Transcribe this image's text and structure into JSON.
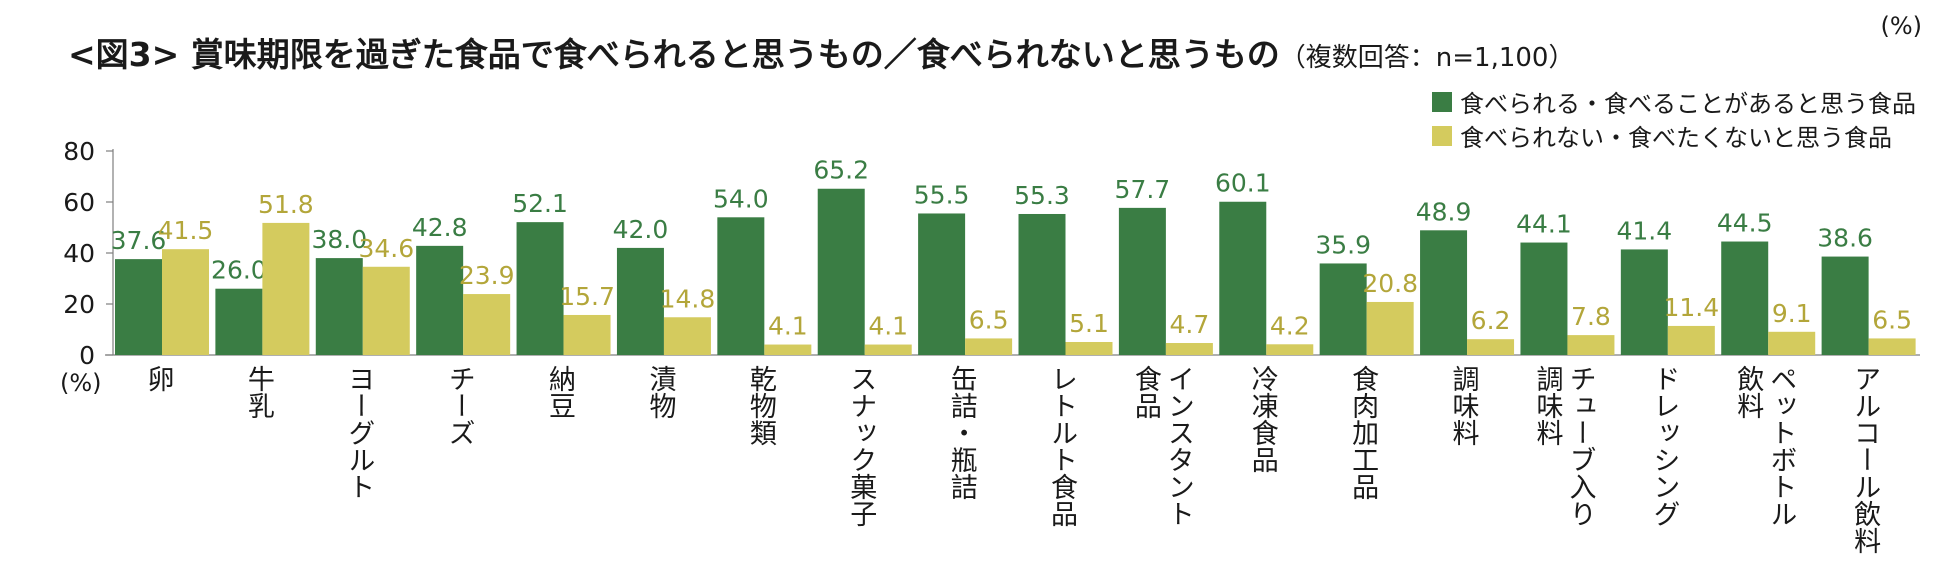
{
  "chart_data": {
    "type": "bar",
    "title": "<図3> 賞味期限を過ぎた食品で食べられると思うもの／食べられないと思うもの",
    "subtitle": "（複数回答：n=1,100）",
    "unit_top": "(%)",
    "ylabel": "(%)",
    "ylim": [
      0,
      80
    ],
    "yticks": [
      "0",
      "20",
      "40",
      "60",
      "80"
    ],
    "categories": [
      "卵",
      "牛乳",
      "ヨーグルト",
      "チーズ",
      "納豆",
      "漬物",
      "乾物類",
      "スナック菓子",
      "缶詰・瓶詰",
      "レトルト食品",
      "インスタント食品",
      "冷凍食品",
      "食肉加工品",
      "調味料",
      "チューブ入り調味料",
      "ドレッシング",
      "ペットボトル飲料",
      "アルコール飲料"
    ],
    "category_lines": [
      [
        "卵"
      ],
      [
        "牛乳"
      ],
      [
        "ヨーグルト"
      ],
      [
        "チーズ"
      ],
      [
        "納豆"
      ],
      [
        "漬物"
      ],
      [
        "乾物類"
      ],
      [
        "スナック菓子"
      ],
      [
        "缶詰・瓶詰"
      ],
      [
        "レトルト食品"
      ],
      [
        "インスタント",
        "食品"
      ],
      [
        "冷凍食品"
      ],
      [
        "食肉加工品"
      ],
      [
        "調味料"
      ],
      [
        "チューブ入り",
        "調味料"
      ],
      [
        "ドレッシング"
      ],
      [
        "ペットボトル",
        "飲料"
      ],
      [
        "アルコール飲料"
      ]
    ],
    "series": [
      {
        "name": "食べられる・食べることがあると思う食品",
        "color": "#3a7d44",
        "label_color": "#3a7d44",
        "values": [
          37.6,
          26.0,
          38.0,
          42.8,
          52.1,
          42.0,
          54.0,
          65.2,
          55.5,
          55.3,
          57.7,
          60.1,
          35.9,
          48.9,
          44.1,
          41.4,
          44.5,
          38.6
        ],
        "labels": [
          "37.6",
          "26.0",
          "38.0",
          "42.8",
          "52.1",
          "42.0",
          "54.0",
          "65.2",
          "55.5",
          "55.3",
          "57.7",
          "60.1",
          "35.9",
          "48.9",
          "44.1",
          "41.4",
          "44.5",
          "38.6"
        ]
      },
      {
        "name": "食べられない・食べたくないと思う食品",
        "color": "#d4cb5e",
        "label_color": "#b3a63a",
        "values": [
          41.5,
          51.8,
          34.6,
          23.9,
          15.7,
          14.8,
          4.1,
          4.1,
          6.5,
          5.1,
          4.7,
          4.2,
          20.8,
          6.2,
          7.8,
          11.4,
          9.1,
          6.5
        ],
        "labels": [
          "41.5",
          "51.8",
          "34.6",
          "23.9",
          "15.7",
          "14.8",
          "4.1",
          "4.1",
          "6.5",
          "5.1",
          "4.7",
          "4.2",
          "20.8",
          "6.2",
          "7.8",
          "11.4",
          "9.1",
          "6.5"
        ]
      }
    ]
  }
}
